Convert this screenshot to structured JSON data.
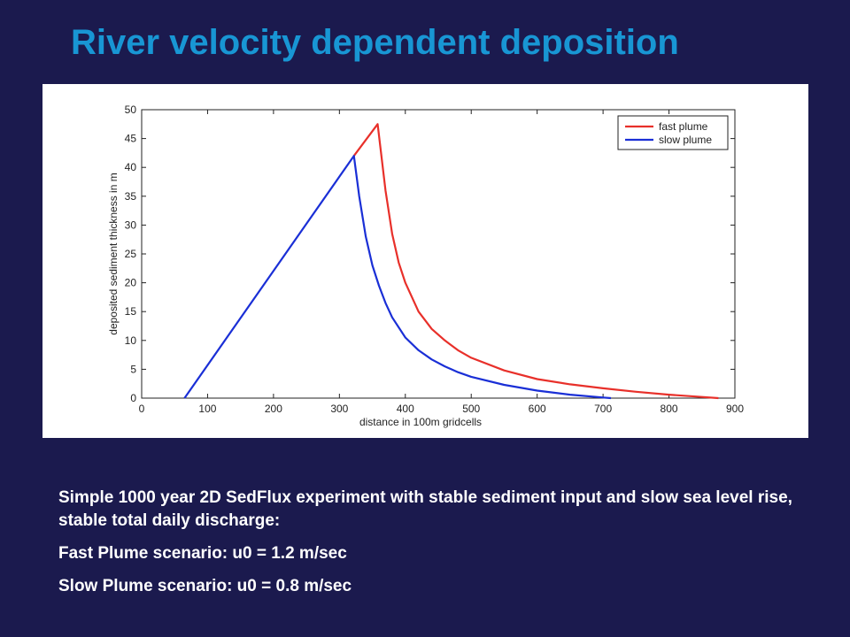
{
  "slide": {
    "title": "River velocity dependent deposition",
    "description": "Simple 1000 year 2D SedFlux experiment with stable sediment input and slow sea level rise, stable total daily discharge:",
    "fast_scenario": "Fast Plume scenario: u0 = 1.2 m/sec",
    "slow_scenario": "Slow Plume scenario: u0 = 0.8 m/sec"
  },
  "chart_data": {
    "type": "line",
    "title": "",
    "xlabel": "distance in 100m gridcells",
    "ylabel": "deposited sediment thickness in m",
    "xlim": [
      0,
      900
    ],
    "ylim": [
      0,
      50
    ],
    "xticks": [
      0,
      100,
      200,
      300,
      400,
      500,
      600,
      700,
      800,
      900
    ],
    "yticks": [
      0,
      5,
      10,
      15,
      20,
      25,
      30,
      35,
      40,
      45,
      50
    ],
    "grid": false,
    "legend_position": "top-right",
    "series": [
      {
        "name": "fast plume",
        "color": "#e8302a",
        "x": [
          322,
          358,
          370,
          380,
          390,
          400,
          420,
          440,
          460,
          480,
          500,
          550,
          600,
          650,
          700,
          750,
          800,
          850,
          875
        ],
        "y": [
          42,
          47.5,
          36,
          28.5,
          23.5,
          20,
          15,
          12,
          10,
          8.3,
          7,
          4.8,
          3.3,
          2.4,
          1.7,
          1.1,
          0.6,
          0.2,
          0
        ]
      },
      {
        "name": "slow plume",
        "color": "#1a2fd6",
        "x": [
          65,
          322,
          330,
          340,
          350,
          360,
          370,
          380,
          400,
          420,
          440,
          460,
          480,
          500,
          550,
          600,
          650,
          700,
          712
        ],
        "y": [
          0,
          42,
          35,
          28,
          23,
          19.5,
          16.5,
          14,
          10.5,
          8.3,
          6.7,
          5.5,
          4.5,
          3.7,
          2.3,
          1.3,
          0.6,
          0.1,
          0
        ]
      }
    ]
  }
}
